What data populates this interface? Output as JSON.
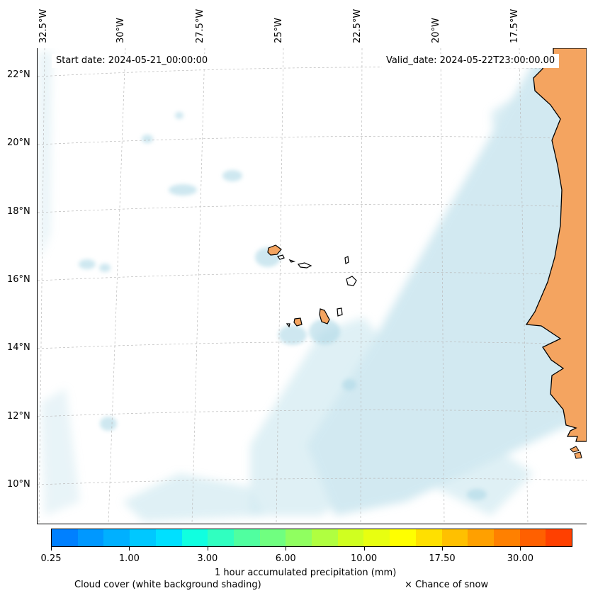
{
  "header": {
    "start_date": "Start date: 2024-05-21_00:00:00",
    "valid_date": "Valid_date: 2024-05-22T23:00:00.00"
  },
  "axes": {
    "longitude_labels": [
      "32.5°W",
      "30°W",
      "27.5°W",
      "25°W",
      "22.5°W",
      "20°W",
      "17.5°W"
    ],
    "latitude_labels": [
      "22°N",
      "20°N",
      "18°N",
      "16°N",
      "14°N",
      "12°N",
      "10°N"
    ]
  },
  "colorbar": {
    "title": "1 hour accumulated precipitation (mm)",
    "tick_labels": [
      "0.25",
      "1.00",
      "3.00",
      "6.00",
      "10.00",
      "17.50",
      "30.00"
    ],
    "colors": [
      "#0080ff",
      "#0098ff",
      "#00b0ff",
      "#00c8ff",
      "#00e0ff",
      "#10ffe0",
      "#30ffc0",
      "#50ffa0",
      "#70ff80",
      "#90ff60",
      "#b0ff40",
      "#d0ff20",
      "#e8ff10",
      "#ffff00",
      "#ffe000",
      "#ffc000",
      "#ffa000",
      "#ff8000",
      "#ff6000",
      "#ff4000"
    ]
  },
  "legend": {
    "cloud_cover": "Cloud cover (white background shading)",
    "snow": "× Chance of snow"
  },
  "style": {
    "land_color": "#f4a460",
    "cloud_color": "#add8e6",
    "coastline_color": "#000000"
  }
}
